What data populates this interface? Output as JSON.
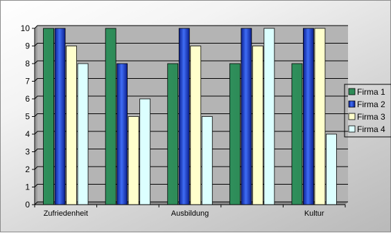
{
  "chart_data": {
    "type": "bar",
    "categories": [
      "Zufriedenheit",
      "",
      "Ausbildung",
      "",
      "Kultur"
    ],
    "series": [
      {
        "name": "Firma 1",
        "values": [
          10,
          10,
          8,
          8,
          8
        ],
        "color": "#2e8b57"
      },
      {
        "name": "Firma 2",
        "values": [
          10,
          8,
          10,
          10,
          10
        ],
        "color": "#2d5be3"
      },
      {
        "name": "Firma 3",
        "values": [
          9,
          5,
          9,
          9,
          10
        ],
        "color": "#ffffcc"
      },
      {
        "name": "Firma 4",
        "values": [
          8,
          6,
          5,
          10,
          4
        ],
        "color": "#dcffff"
      }
    ],
    "ylim": [
      0,
      10
    ],
    "yticks": [
      "0",
      "1",
      "2",
      "3",
      "4",
      "5",
      "6",
      "7",
      "8",
      "9",
      "10"
    ],
    "grid": true,
    "legend_position": "right",
    "plot_background": "#b4b4b4"
  }
}
